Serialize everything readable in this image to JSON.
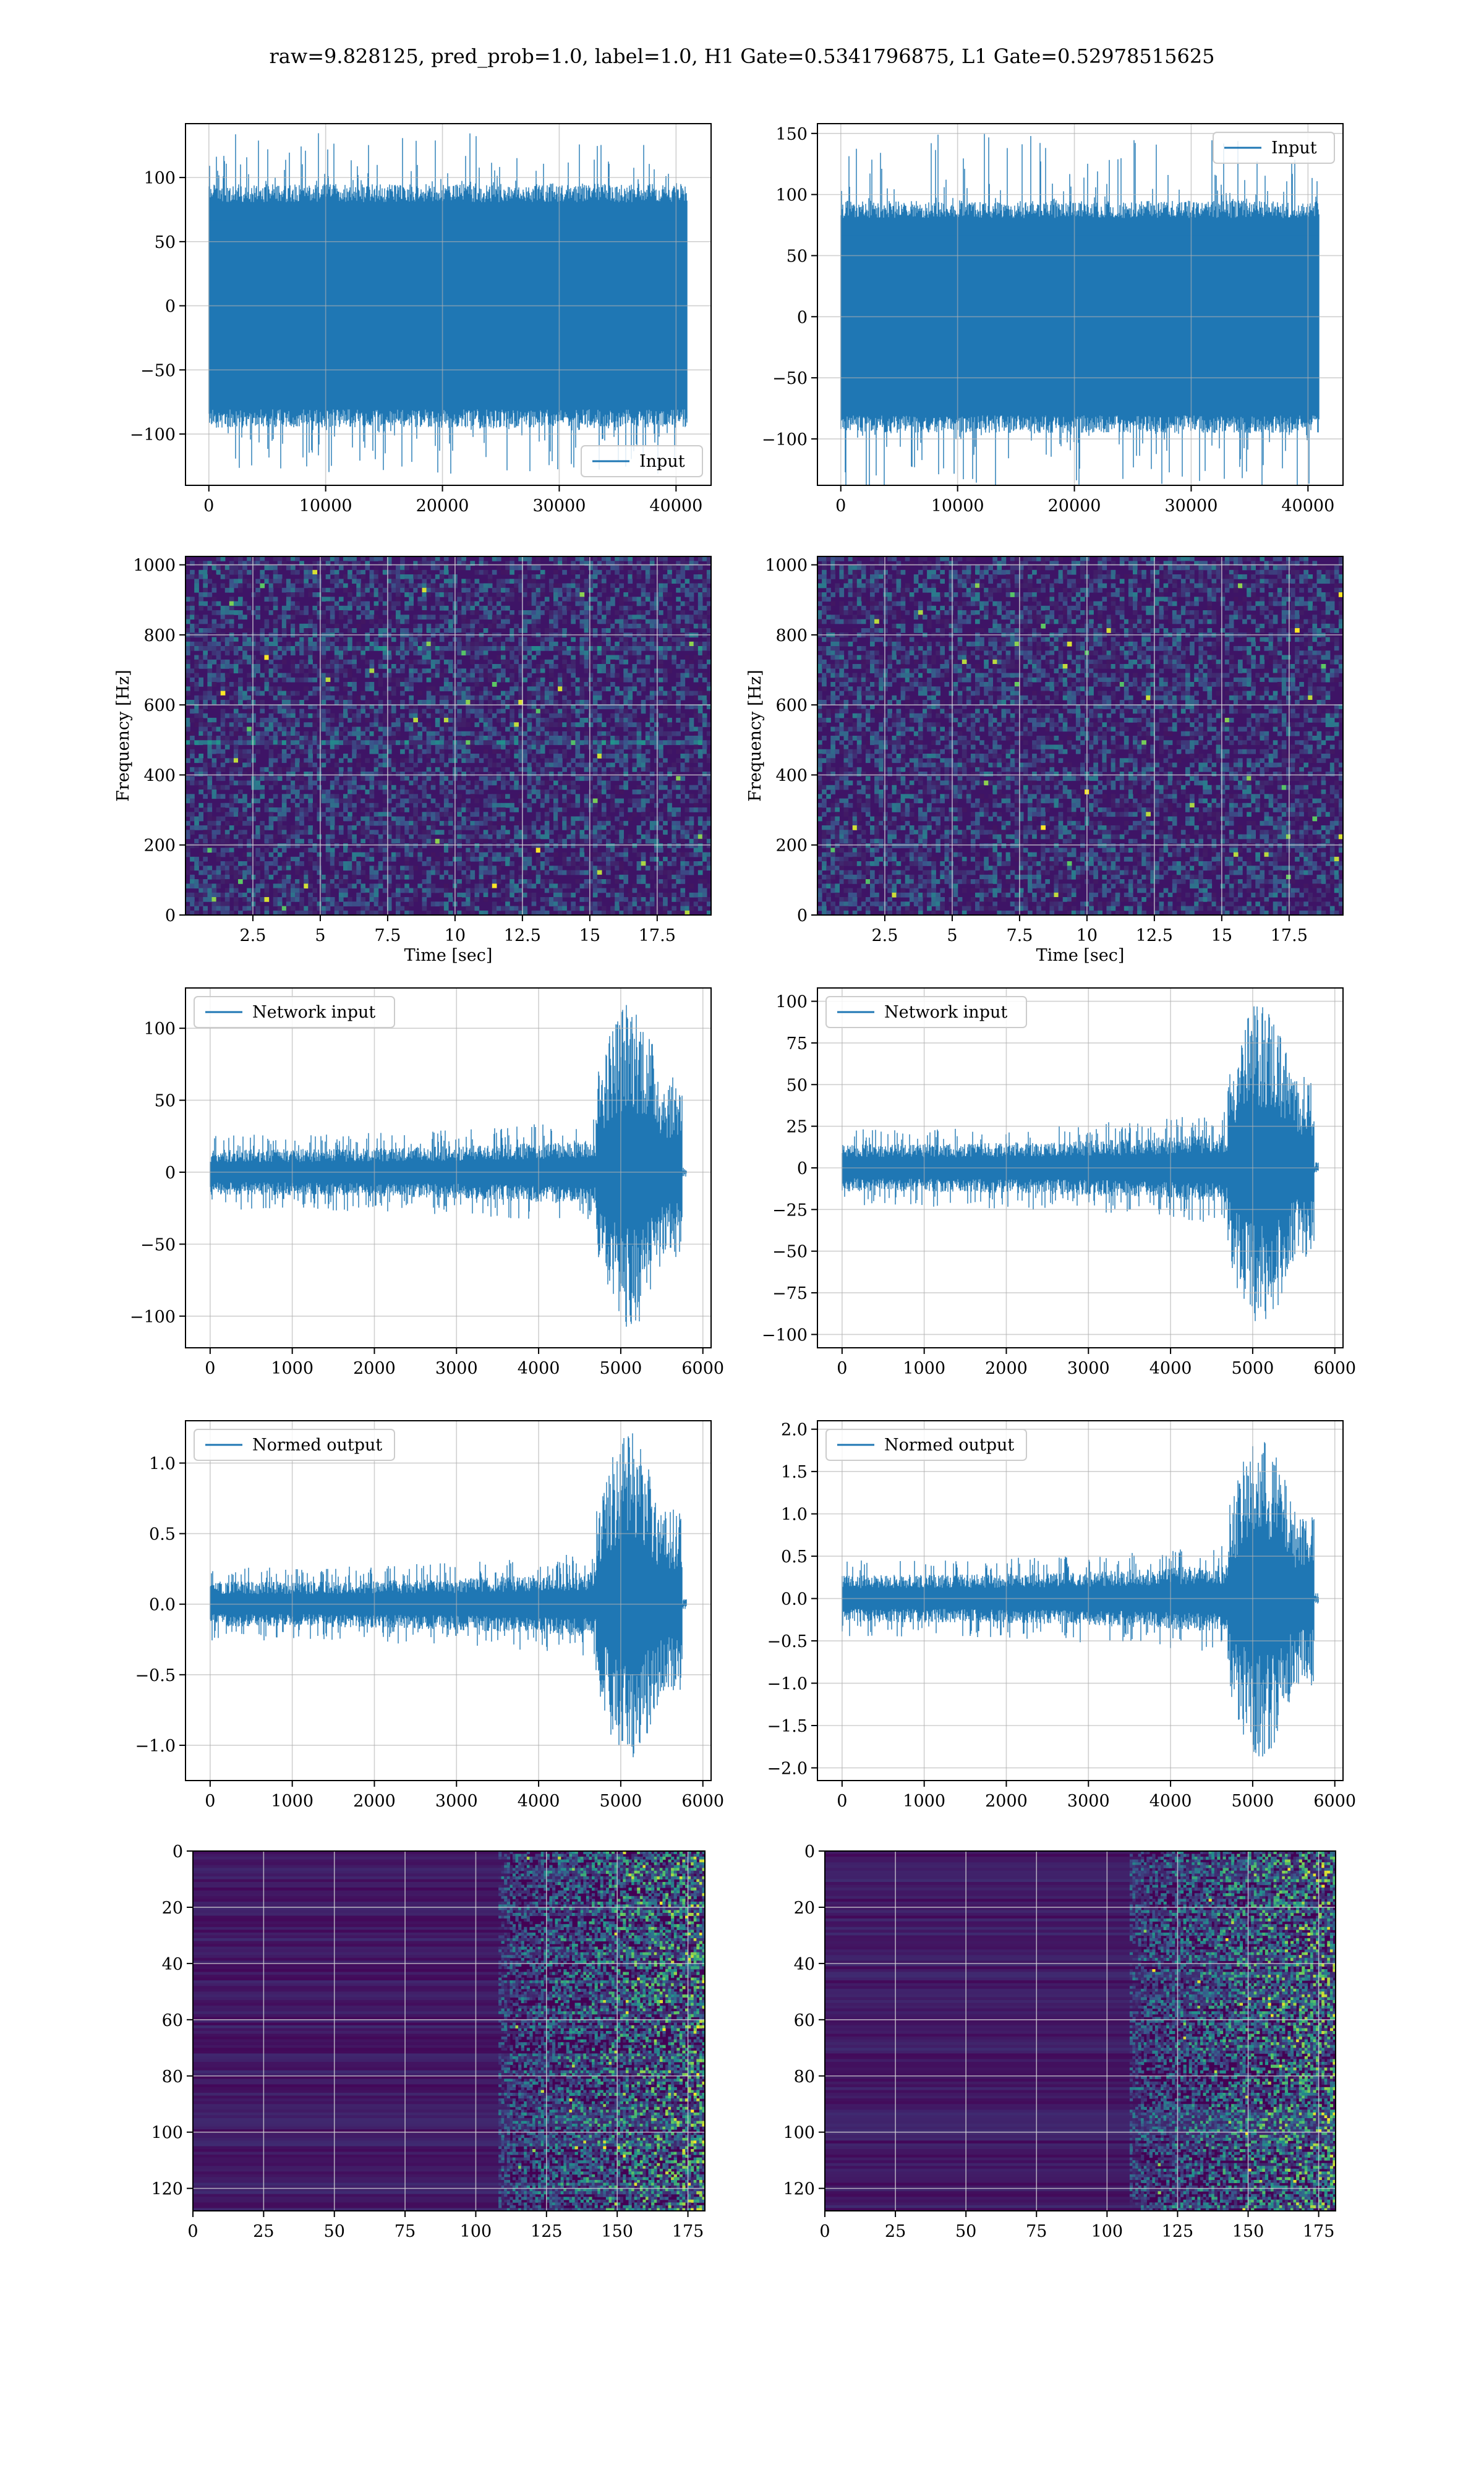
{
  "figure": {
    "suptitle": "raw=9.828125, pred_prob=1.0, label=1.0, H1 Gate=0.5341796875, L1 Gate=0.52978515625"
  },
  "colors": {
    "line": "#1f77b4",
    "grid": "#b0b0b0",
    "axes": "#000000"
  },
  "chart_data": [
    {
      "type": "line",
      "panel": "row1-left",
      "xlim": [
        -2000,
        43000
      ],
      "ylim": [
        -140,
        142
      ],
      "xticks": [
        0,
        10000,
        20000,
        30000,
        40000
      ],
      "yticks": [
        -100,
        -50,
        0,
        50,
        100
      ],
      "series": [
        {
          "name": "Input",
          "n": 40960,
          "envelope": [
            -95,
            95
          ],
          "peak": 135
        }
      ],
      "legend": "lower right",
      "grid": true,
      "xlabel": "",
      "ylabel": ""
    },
    {
      "type": "line",
      "panel": "row1-right",
      "xlim": [
        -2000,
        43000
      ],
      "ylim": [
        -138,
        158
      ],
      "xticks": [
        0,
        10000,
        20000,
        30000,
        40000
      ],
      "yticks": [
        -100,
        -50,
        0,
        50,
        100,
        150
      ],
      "series": [
        {
          "name": "Input",
          "n": 40960,
          "envelope": [
            -95,
            95
          ],
          "peak": 150
        }
      ],
      "legend": "upper right",
      "grid": true,
      "xlabel": "",
      "ylabel": ""
    },
    {
      "type": "heatmap",
      "panel": "row2-left",
      "xlim": [
        0,
        19.5
      ],
      "ylim": [
        0,
        1024
      ],
      "xticks": [
        2.5,
        5.0,
        7.5,
        10.0,
        12.5,
        15.0,
        17.5
      ],
      "yticks": [
        0,
        200,
        400,
        600,
        800,
        1000
      ],
      "xlabel": "Time [sec]",
      "ylabel": "Frequency [Hz]",
      "grid": true
    },
    {
      "type": "heatmap",
      "panel": "row2-right",
      "xlim": [
        0,
        19.5
      ],
      "ylim": [
        0,
        1024
      ],
      "xticks": [
        2.5,
        5.0,
        7.5,
        10.0,
        12.5,
        15.0,
        17.5
      ],
      "yticks": [
        0,
        200,
        400,
        600,
        800,
        1000
      ],
      "xlabel": "Time [sec]",
      "ylabel": "Frequency [Hz]",
      "grid": true
    },
    {
      "type": "line",
      "panel": "row3-left",
      "xlim": [
        -300,
        6100
      ],
      "ylim": [
        -122,
        128
      ],
      "xticks": [
        0,
        1000,
        2000,
        3000,
        4000,
        5000,
        6000
      ],
      "yticks": [
        -100,
        -50,
        0,
        50,
        100
      ],
      "series": [
        {
          "name": "Network input",
          "n": 5800,
          "envelope": [
            -20,
            20
          ],
          "burst_start": 4700,
          "burst_end": 5750,
          "peak": 120,
          "trough": -110
        }
      ],
      "legend": "upper left",
      "grid": true,
      "xlabel": "",
      "ylabel": ""
    },
    {
      "type": "line",
      "panel": "row3-right",
      "xlim": [
        -300,
        6100
      ],
      "ylim": [
        -108,
        108
      ],
      "xticks": [
        0,
        1000,
        2000,
        3000,
        4000,
        5000,
        6000
      ],
      "yticks": [
        -100,
        -75,
        -50,
        -25,
        0,
        25,
        50,
        75,
        100
      ],
      "series": [
        {
          "name": "Network input",
          "n": 5800,
          "envelope": [
            -18,
            18
          ],
          "burst_start": 4700,
          "burst_end": 5750,
          "peak": 100,
          "trough": -98
        }
      ],
      "legend": "upper left",
      "grid": true,
      "xlabel": "",
      "ylabel": ""
    },
    {
      "type": "line",
      "panel": "row4-left",
      "xlim": [
        -300,
        6100
      ],
      "ylim": [
        -1.25,
        1.3
      ],
      "xticks": [
        0,
        1000,
        2000,
        3000,
        4000,
        5000,
        6000
      ],
      "yticks": [
        -1.0,
        -0.5,
        0.0,
        0.5,
        1.0
      ],
      "series": [
        {
          "name": "Normed output",
          "n": 5800,
          "envelope": [
            -0.2,
            0.2
          ],
          "burst_start": 4700,
          "burst_end": 5750,
          "peak": 1.22,
          "trough": -1.12
        }
      ],
      "legend": "upper left",
      "grid": true,
      "xlabel": "",
      "ylabel": ""
    },
    {
      "type": "line",
      "panel": "row4-right",
      "xlim": [
        -300,
        6100
      ],
      "ylim": [
        -2.15,
        2.1
      ],
      "xticks": [
        0,
        1000,
        2000,
        3000,
        4000,
        5000,
        6000
      ],
      "yticks": [
        -2.0,
        -1.5,
        -1.0,
        -0.5,
        0.0,
        0.5,
        1.0,
        1.5,
        2.0
      ],
      "series": [
        {
          "name": "Normed output",
          "n": 5800,
          "envelope": [
            -0.35,
            0.35
          ],
          "burst_start": 4700,
          "burst_end": 5750,
          "peak": 1.9,
          "trough": -1.9
        }
      ],
      "legend": "upper left",
      "grid": true,
      "xlabel": "",
      "ylabel": ""
    },
    {
      "type": "heatmap",
      "panel": "row5-left",
      "xlim": [
        0,
        181
      ],
      "ylim": [
        128,
        0
      ],
      "xticks": [
        0,
        25,
        50,
        75,
        100,
        125,
        150,
        175
      ],
      "yticks": [
        0,
        20,
        40,
        60,
        80,
        100,
        120
      ],
      "grid": true,
      "xlabel": "",
      "ylabel": ""
    },
    {
      "type": "heatmap",
      "panel": "row5-right",
      "xlim": [
        0,
        181
      ],
      "ylim": [
        128,
        0
      ],
      "xticks": [
        0,
        25,
        50,
        75,
        100,
        125,
        150,
        175
      ],
      "yticks": [
        0,
        20,
        40,
        60,
        80,
        100,
        120
      ],
      "grid": true,
      "xlabel": "",
      "ylabel": ""
    }
  ]
}
